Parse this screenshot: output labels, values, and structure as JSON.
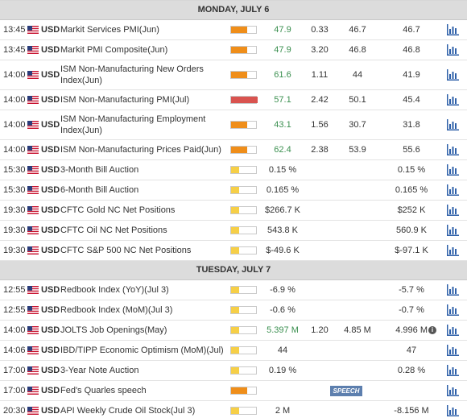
{
  "days": [
    {
      "header": "MONDAY, JULY 6",
      "events": [
        {
          "time": "13:45",
          "currency": "USD",
          "event": "Markit Services PMI(Jun)",
          "bar": "orange",
          "actual": "47.9",
          "green": true,
          "deviation": "0.33",
          "consensus": "46.7",
          "previous": "46.7"
        },
        {
          "time": "13:45",
          "currency": "USD",
          "event": "Markit PMI Composite(Jun)",
          "bar": "orange",
          "actual": "47.9",
          "green": true,
          "deviation": "3.20",
          "consensus": "46.8",
          "previous": "46.8"
        },
        {
          "time": "14:00",
          "currency": "USD",
          "event": "ISM Non-Manufacturing New Orders Index(Jun)",
          "tall": true,
          "bar": "orange",
          "actual": "61.6",
          "green": true,
          "deviation": "1.11",
          "consensus": "44",
          "previous": "41.9"
        },
        {
          "time": "14:00",
          "currency": "USD",
          "event": "ISM Non-Manufacturing PMI(Jul)",
          "bar": "red",
          "actual": "57.1",
          "green": true,
          "deviation": "2.42",
          "consensus": "50.1",
          "previous": "45.4"
        },
        {
          "time": "14:00",
          "currency": "USD",
          "event": "ISM Non-Manufacturing Employment Index(Jun)",
          "tall": true,
          "bar": "orange",
          "actual": "43.1",
          "green": true,
          "deviation": "1.56",
          "consensus": "30.7",
          "previous": "31.8"
        },
        {
          "time": "14:00",
          "currency": "USD",
          "event": "ISM Non-Manufacturing Prices Paid(Jun)",
          "bar": "orange",
          "actual": "62.4",
          "green": true,
          "deviation": "2.38",
          "consensus": "53.9",
          "previous": "55.6"
        },
        {
          "time": "15:30",
          "currency": "USD",
          "event": "3-Month Bill Auction",
          "bar": "yellow",
          "actual": "0.15 %",
          "deviation": "",
          "consensus": "",
          "previous": "0.15 %"
        },
        {
          "time": "15:30",
          "currency": "USD",
          "event": "6-Month Bill Auction",
          "bar": "yellow",
          "actual": "0.165 %",
          "deviation": "",
          "consensus": "",
          "previous": "0.165 %"
        },
        {
          "time": "19:30",
          "currency": "USD",
          "event": "CFTC Gold NC Net Positions",
          "bar": "yellow",
          "actual": "$266.7 K",
          "deviation": "",
          "consensus": "",
          "previous": "$252 K"
        },
        {
          "time": "19:30",
          "currency": "USD",
          "event": "CFTC Oil NC Net Positions",
          "bar": "yellow",
          "actual": "543.8 K",
          "deviation": "",
          "consensus": "",
          "previous": "560.9 K"
        },
        {
          "time": "19:30",
          "currency": "USD",
          "event": "CFTC S&P 500 NC Net Positions",
          "bar": "yellow",
          "actual": "$-49.6 K",
          "deviation": "",
          "consensus": "",
          "previous": "$-97.1 K"
        }
      ]
    },
    {
      "header": "TUESDAY, JULY 7",
      "events": [
        {
          "time": "12:55",
          "currency": "USD",
          "event": "Redbook Index (YoY)(Jul 3)",
          "bar": "yellow",
          "actual": "-6.9 %",
          "deviation": "",
          "consensus": "",
          "previous": "-5.7 %"
        },
        {
          "time": "12:55",
          "currency": "USD",
          "event": "Redbook Index (MoM)(Jul 3)",
          "bar": "yellow",
          "actual": "-0.6 %",
          "deviation": "",
          "consensus": "",
          "previous": "-0.7 %"
        },
        {
          "time": "14:00",
          "currency": "USD",
          "event": "JOLTS Job Openings(May)",
          "bar": "yellow",
          "actual": "5.397 M",
          "green": true,
          "deviation": "1.20",
          "consensus": "4.85 M",
          "previous": "4.996 M",
          "info": true
        },
        {
          "time": "14:06",
          "currency": "USD",
          "event": "IBD/TIPP Economic Optimism (MoM)(Jul)",
          "bar": "yellow",
          "actual": "44",
          "deviation": "",
          "consensus": "",
          "previous": "47"
        },
        {
          "time": "17:00",
          "currency": "USD",
          "event": "3-Year Note Auction",
          "bar": "yellow",
          "actual": "0.19 %",
          "deviation": "",
          "consensus": "",
          "previous": "0.28 %"
        },
        {
          "time": "17:00",
          "currency": "USD",
          "event": "Fed's Quarles speech",
          "bar": "orange",
          "actual": "",
          "deviation": "",
          "consensus": "",
          "previous": "",
          "speech": "SPEECH"
        },
        {
          "time": "20:30",
          "currency": "USD",
          "event": "API Weekly Crude Oil Stock(Jul 3)",
          "bar": "yellow",
          "actual": "2 M",
          "deviation": "",
          "consensus": "",
          "previous": "-8.156 M"
        }
      ]
    }
  ],
  "info_glyph": "i",
  "icons": {
    "chart": "bar-chart-icon",
    "flag": "us-flag-icon"
  },
  "colors": {
    "bar_orange": "#ef8e1a",
    "bar_red": "#d9534f",
    "bar_yellow": "#f6cf47",
    "actual_green": "#3a8f4f",
    "chart_icon": "#2d5fa8",
    "speech_bg": "#5d7fae"
  }
}
